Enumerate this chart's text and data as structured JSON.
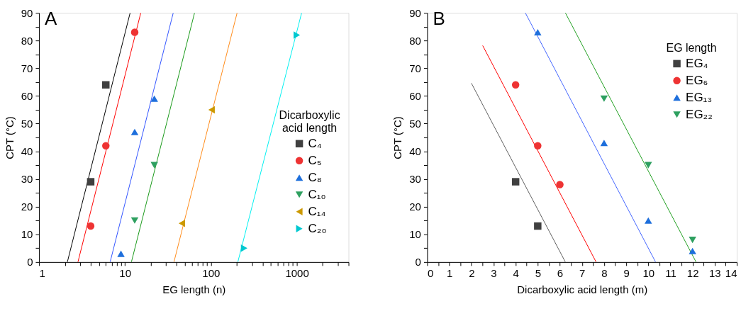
{
  "chart_data": [
    {
      "type": "scatter",
      "title": "A",
      "xlabel": "EG length (n)",
      "ylabel": "CPT (°C)",
      "legend_title": "Dicarboxylic acid length",
      "legend": "right",
      "grid": false,
      "log": "x",
      "xlim": [
        1,
        4000
      ],
      "xticks": [
        1,
        {
          "value": 2,
          "label": null
        },
        {
          "value": 3,
          "label": null
        },
        {
          "value": 4,
          "label": null
        },
        {
          "value": 5,
          "label": null
        },
        {
          "value": 6,
          "label": null
        },
        {
          "value": 7,
          "label": null
        },
        {
          "value": 8,
          "label": null
        },
        {
          "value": 9,
          "label": null
        },
        10,
        {
          "value": 20,
          "label": null
        },
        {
          "value": 30,
          "label": null
        },
        {
          "value": 40,
          "label": null
        },
        {
          "value": 50,
          "label": null
        },
        {
          "value": 60,
          "label": null
        },
        {
          "value": 70,
          "label": null
        },
        {
          "value": 80,
          "label": null
        },
        {
          "value": 90,
          "label": null
        },
        100,
        {
          "value": 200,
          "label": null
        },
        {
          "value": 300,
          "label": null
        },
        {
          "value": 400,
          "label": null
        },
        {
          "value": 500,
          "label": null
        },
        {
          "value": 600,
          "label": null
        },
        {
          "value": 700,
          "label": null
        },
        {
          "value": 800,
          "label": null
        },
        {
          "value": 900,
          "label": null
        },
        1000,
        {
          "value": 2000,
          "label": null
        },
        {
          "value": 3000,
          "label": null
        },
        {
          "value": 4000,
          "label": null
        }
      ],
      "ylim": [
        0,
        90
      ],
      "yticks": [
        0,
        {
          "value": 5,
          "label": null
        },
        10,
        {
          "value": 15,
          "label": null
        },
        20,
        {
          "value": 25,
          "label": null
        },
        30,
        {
          "value": 35,
          "label": null
        },
        40,
        {
          "value": 45,
          "label": null
        },
        50,
        {
          "value": 55,
          "label": null
        },
        60,
        {
          "value": 65,
          "label": null
        },
        70,
        {
          "value": 75,
          "label": null
        },
        80,
        {
          "value": 85,
          "label": null
        },
        90
      ],
      "series": [
        {
          "type": "line",
          "color": "#000000",
          "marker": "none",
          "x": [
            2.14,
            11.5
          ],
          "values": [
            0,
            90
          ]
        },
        {
          "type": "line",
          "color": "#ff0000",
          "marker": "none",
          "x": [
            2.84,
            15.3
          ],
          "values": [
            0,
            90
          ]
        },
        {
          "type": "line",
          "color": "#3355ff",
          "marker": "none",
          "x": [
            6.73,
            36.5
          ],
          "values": [
            0,
            90
          ]
        },
        {
          "type": "line",
          "color": "#1a9a1a",
          "marker": "none",
          "x": [
            11.9,
            64.6
          ],
          "values": [
            0,
            90
          ]
        },
        {
          "type": "line",
          "color": "#ff8c1a",
          "marker": "none",
          "x": [
            37.2,
            202
          ],
          "values": [
            0,
            90
          ]
        },
        {
          "type": "line",
          "color": "#00f0f0",
          "marker": "none",
          "x": [
            206,
            1138
          ],
          "values": [
            0,
            90
          ]
        },
        {
          "name": "C₄",
          "color": "#404040",
          "marker": "square",
          "x": [
            4,
            6
          ],
          "values": [
            29,
            64
          ]
        },
        {
          "name": "C₅",
          "color": "#ee3333",
          "marker": "circle",
          "x": [
            4,
            6,
            13
          ],
          "values": [
            13,
            42,
            83
          ]
        },
        {
          "name": "C₈",
          "color": "#1e6fdc",
          "marker": "triangle",
          "x": [
            9,
            13,
            22
          ],
          "values": [
            3,
            47,
            59
          ]
        },
        {
          "name": "C₁₀",
          "color": "#2ea060",
          "marker": "triangle-down",
          "x": [
            13,
            22
          ],
          "values": [
            15,
            35
          ]
        },
        {
          "name": "C₁₄",
          "color": "#cc9900",
          "marker": "triangle-left",
          "x": [
            46,
            102
          ],
          "values": [
            14,
            55
          ]
        },
        {
          "name": "C₂₀",
          "color": "#00c8d0",
          "marker": "triangle-right",
          "x": [
            244,
            1000
          ],
          "values": [
            5,
            82
          ]
        }
      ]
    },
    {
      "type": "scatter",
      "title": "B",
      "xlabel": "Dicarboxylic acid length (m)",
      "ylabel": "CPT (°C)",
      "legend_title": "EG length",
      "legend": "top right",
      "grid": false,
      "xlim": [
        0,
        14
      ],
      "xticks": [
        0,
        {
          "value": 0.5,
          "label": null
        },
        1,
        {
          "value": 1.5,
          "label": null
        },
        2,
        {
          "value": 2.5,
          "label": null
        },
        3,
        {
          "value": 3.5,
          "label": null
        },
        4,
        {
          "value": 4.5,
          "label": null
        },
        5,
        {
          "value": 5.5,
          "label": null
        },
        6,
        {
          "value": 6.5,
          "label": null
        },
        7,
        {
          "value": 7.5,
          "label": null
        },
        8,
        {
          "value": 8.5,
          "label": null
        },
        9,
        {
          "value": 9.5,
          "label": null
        },
        10,
        {
          "value": 10.5,
          "label": null
        },
        11,
        {
          "value": 11.5,
          "label": null
        },
        12,
        {
          "value": 12.5,
          "label": null
        },
        13,
        {
          "value": 13.5,
          "label": null
        },
        14
      ],
      "ylim": [
        0,
        90
      ],
      "yticks": [
        0,
        {
          "value": 5,
          "label": null
        },
        10,
        {
          "value": 15,
          "label": null
        },
        20,
        {
          "value": 25,
          "label": null
        },
        30,
        {
          "value": 35,
          "label": null
        },
        40,
        {
          "value": 45,
          "label": null
        },
        50,
        {
          "value": 55,
          "label": null
        },
        60,
        {
          "value": 65,
          "label": null
        },
        70,
        {
          "value": 75,
          "label": null
        },
        80,
        {
          "value": 85,
          "label": null
        },
        90
      ],
      "series": [
        {
          "type": "line",
          "color": "#606060",
          "marker": "none",
          "x": [
            2.0,
            6.25
          ],
          "values": [
            64.6,
            0
          ]
        },
        {
          "type": "line",
          "color": "#ff0000",
          "marker": "none",
          "x": [
            2.51,
            7.64
          ],
          "values": [
            78.2,
            0
          ]
        },
        {
          "type": "line",
          "color": "#4466ff",
          "marker": "none",
          "x": [
            4.44,
            10.33
          ],
          "values": [
            90,
            0
          ]
        },
        {
          "type": "line",
          "color": "#22a022",
          "marker": "none",
          "x": [
            6.25,
            12.16
          ],
          "values": [
            90,
            0
          ]
        },
        {
          "name": "EG₄",
          "color": "#404040",
          "marker": "square",
          "x": [
            4,
            5
          ],
          "values": [
            29,
            13
          ]
        },
        {
          "name": "EG₆",
          "color": "#ee3333",
          "marker": "circle",
          "x": [
            4,
            5,
            6
          ],
          "values": [
            64,
            42,
            28
          ]
        },
        {
          "name": "EG₁₃",
          "color": "#1e6fdc",
          "marker": "triangle",
          "x": [
            5,
            8,
            10,
            12
          ],
          "values": [
            83,
            43,
            15,
            4
          ]
        },
        {
          "name": "EG₂₂",
          "color": "#2ea060",
          "marker": "triangle-down",
          "x": [
            8,
            10,
            12
          ],
          "values": [
            59,
            35,
            8
          ]
        }
      ]
    }
  ]
}
